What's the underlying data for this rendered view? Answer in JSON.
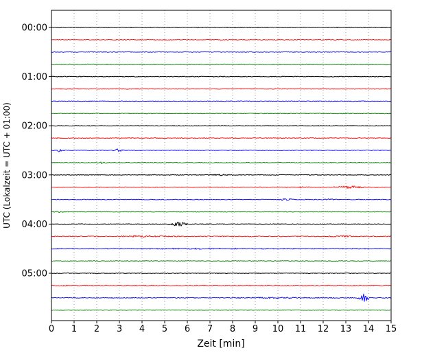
{
  "chart_data": {
    "type": "line",
    "variant": "helicorder-dayplot",
    "title": "",
    "xlabel": "Zeit  [min]",
    "ylabel": "UTC (Lokalzeit = UTC + 01:00)",
    "xlim": [
      0,
      15
    ],
    "minutes_per_line": 15,
    "grid": true,
    "x_tick_labels": [
      "0",
      "1",
      "2",
      "3",
      "4",
      "5",
      "6",
      "7",
      "8",
      "9",
      "10",
      "11",
      "12",
      "13",
      "14",
      "15"
    ],
    "y_tick_labels": [
      "00:00",
      "01:00",
      "02:00",
      "03:00",
      "04:00",
      "05:00"
    ],
    "colors": {
      "black": "#000000",
      "red": "#ff0000",
      "blue": "#0000ff",
      "green": "#008000"
    },
    "traces": [
      {
        "time": "00:00",
        "color": "black",
        "noise": 0.5,
        "events": []
      },
      {
        "time": "00:15",
        "color": "red",
        "noise": 0.55,
        "events": []
      },
      {
        "time": "00:30",
        "color": "blue",
        "noise": 0.5,
        "events": []
      },
      {
        "time": "00:45",
        "color": "green",
        "noise": 0.5,
        "events": []
      },
      {
        "time": "01:00",
        "color": "black",
        "noise": 0.5,
        "events": []
      },
      {
        "time": "01:15",
        "color": "red",
        "noise": 0.55,
        "events": []
      },
      {
        "time": "01:30",
        "color": "blue",
        "noise": 0.5,
        "events": []
      },
      {
        "time": "01:45",
        "color": "green",
        "noise": 0.5,
        "events": []
      },
      {
        "time": "02:00",
        "color": "black",
        "noise": 0.5,
        "events": []
      },
      {
        "time": "02:15",
        "color": "red",
        "noise": 0.55,
        "events": []
      },
      {
        "time": "02:30",
        "color": "blue",
        "noise": 0.5,
        "events": [
          {
            "x": 0.35,
            "amp": 2.2,
            "w": 0.1
          },
          {
            "x": 2.95,
            "amp": 2.8,
            "w": 0.12
          }
        ]
      },
      {
        "time": "02:45",
        "color": "green",
        "noise": 0.5,
        "events": [
          {
            "x": 2.25,
            "amp": 1.2,
            "w": 0.2
          }
        ]
      },
      {
        "time": "03:00",
        "color": "black",
        "noise": 0.5,
        "events": [
          {
            "x": 7.5,
            "amp": 1.1,
            "w": 0.3
          }
        ]
      },
      {
        "time": "03:15",
        "color": "red",
        "noise": 0.55,
        "events": [
          {
            "x": 10.9,
            "amp": 0.9,
            "w": 0.3
          },
          {
            "x": 13.2,
            "amp": 1.8,
            "w": 0.45
          }
        ]
      },
      {
        "time": "03:30",
        "color": "blue",
        "noise": 0.5,
        "events": [
          {
            "x": 10.35,
            "amp": 1.8,
            "w": 0.18
          },
          {
            "x": 12.35,
            "amp": 1.6,
            "w": 0.14
          }
        ]
      },
      {
        "time": "03:45",
        "color": "green",
        "noise": 0.5,
        "events": [
          {
            "x": 0.25,
            "amp": 1.7,
            "w": 0.14
          }
        ]
      },
      {
        "time": "04:00",
        "color": "black",
        "noise": 0.5,
        "events": [
          {
            "x": 5.65,
            "amp": 3.3,
            "w": 0.28
          }
        ]
      },
      {
        "time": "04:15",
        "color": "red",
        "noise": 0.6,
        "events": [
          {
            "x": 4.2,
            "amp": 1.1,
            "w": 0.8
          },
          {
            "x": 13.0,
            "amp": 1.1,
            "w": 0.6
          }
        ]
      },
      {
        "time": "04:30",
        "color": "blue",
        "noise": 0.65,
        "events": [
          {
            "x": 7.0,
            "amp": 0.7,
            "w": 2.0
          }
        ]
      },
      {
        "time": "04:45",
        "color": "green",
        "noise": 0.5,
        "events": []
      },
      {
        "time": "05:00",
        "color": "black",
        "noise": 0.5,
        "events": []
      },
      {
        "time": "05:15",
        "color": "red",
        "noise": 0.6,
        "events": [
          {
            "x": 0.6,
            "amp": 0.8,
            "w": 0.3
          }
        ]
      },
      {
        "time": "05:30",
        "color": "blue",
        "noise": 0.55,
        "events": [
          {
            "x": 9.9,
            "amp": 0.9,
            "w": 1.0
          },
          {
            "x": 13.8,
            "amp": 8.5,
            "w": 0.13
          }
        ]
      },
      {
        "time": "05:45",
        "color": "green",
        "noise": 0.5,
        "events": []
      }
    ]
  }
}
